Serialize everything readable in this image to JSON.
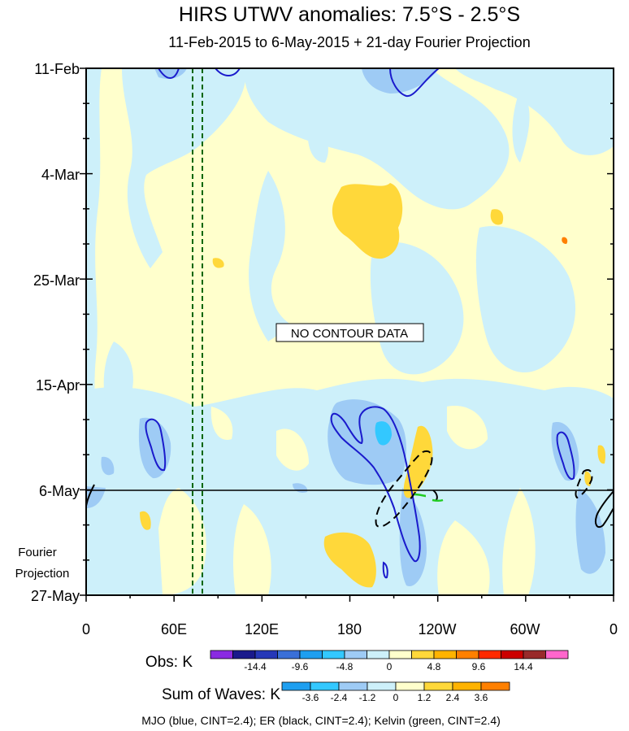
{
  "chart_data": {
    "type": "heatmap",
    "title": "HIRS UTWV anomalies: 7.5°S - 2.5°S",
    "subtitle": "11-Feb-2015 to 6-May-2015 + 21-day Fourier Projection",
    "x_axis": {
      "ticks": [
        "0",
        "60E",
        "120E",
        "180",
        "120W",
        "60W",
        "0"
      ],
      "range_deg_east": [
        0,
        360
      ]
    },
    "y_axis": {
      "ticks": [
        "11-Feb",
        "4-Mar",
        "25-Mar",
        "15-Apr",
        "6-May",
        "27-May"
      ],
      "range": [
        "11-Feb-2015",
        "27-May-2015"
      ]
    },
    "fourier_label_line1": "Fourier",
    "fourier_label_line2": "Projection",
    "projection_start": "6-May-2015",
    "annotation": "NO CONTOUR DATA",
    "vertical_reference_lines_deg_east": [
      73,
      80
    ],
    "obs_colorbar": {
      "label": "Obs: K",
      "tick_labels": [
        "-14.4",
        "-9.6",
        "-4.8",
        "0",
        "4.8",
        "9.6",
        "14.4"
      ],
      "colors": [
        "#8a2be2",
        "#1a1a8c",
        "#2638b8",
        "#3a6fd8",
        "#1e9ff0",
        "#33c8ff",
        "#9ecbf5",
        "#cdf0fa",
        "#ffffcc",
        "#ffd83a",
        "#ffb300",
        "#ff8000",
        "#ff2a00",
        "#cc0000",
        "#992a2a",
        "#ff66cc"
      ]
    },
    "waves_colorbar": {
      "label": "Sum of Waves: K",
      "tick_labels": [
        "-3.6",
        "-2.4",
        "-1.2",
        "0",
        "1.2",
        "2.4",
        "3.6"
      ],
      "colors": [
        "#1e9ff0",
        "#33c8ff",
        "#9ecbf5",
        "#cdf0fa",
        "#ffffcc",
        "#ffd83a",
        "#ffb300",
        "#ff8000"
      ]
    },
    "footer": "MJO (blue, CINT=2.4); ER (black, CINT=2.4); Kelvin (green, CINT=2.4)",
    "series": [
      {
        "name": "MJO",
        "color": "#1a1acc"
      },
      {
        "name": "ER",
        "color": "#000000"
      },
      {
        "name": "Kelvin",
        "color": "#22cc22"
      }
    ]
  }
}
